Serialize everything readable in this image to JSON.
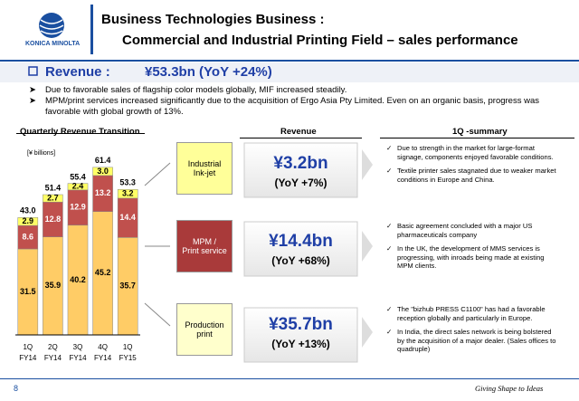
{
  "header": {
    "company": "KONICA MINOLTA",
    "title_line1": "Business Technologies Business :",
    "title_line2": "Commercial and Industrial Printing Field – sales performance"
  },
  "revenue": {
    "label": "Revenue :",
    "value": "¥53.3bn (YoY +24%)"
  },
  "bullets": [
    "Due to favorable sales of flagship color models globally, MIF increased steadily.",
    "MPM/print services increased significantly due to the acquisition of Ergo Asia Pty Limited. Even on an organic basis, progress was favorable with global growth of 13%."
  ],
  "chart_data": {
    "type": "bar",
    "stacked": true,
    "title": "Quarterly Revenue Transition",
    "unit_label": "[¥ billions]",
    "categories": [
      "1Q\nFY14",
      "2Q\nFY14",
      "3Q\nFY14",
      "4Q\nFY14",
      "1Q\nFY15"
    ],
    "ylim": [
      0,
      65
    ],
    "series": [
      {
        "color": "#FFCC66",
        "values": [
          31.5,
          35.9,
          40.2,
          45.2,
          35.7
        ],
        "value_labels": [
          "31.5",
          "35.9",
          "40.2",
          "45.2",
          "35.7"
        ]
      },
      {
        "color": "#C0504D",
        "values": [
          8.6,
          12.8,
          12.9,
          13.2,
          14.4
        ],
        "value_labels": [
          "8.6",
          "12.8",
          "12.9",
          "13.2",
          "14.4"
        ]
      },
      {
        "color": "#FFFF66",
        "values": [
          2.9,
          2.7,
          2.4,
          3.0,
          3.2
        ],
        "value_labels": [
          "2.9",
          "2.7",
          "2.4",
          "3.0",
          "3.2"
        ]
      }
    ],
    "totals": {
      "values": [
        43.0,
        51.4,
        55.4,
        61.4,
        53.3
      ],
      "value_labels": [
        "43.0",
        "51.4",
        "55.4",
        "61.4",
        "53.3"
      ]
    }
  },
  "segments": {
    "revenue_header": "Revenue",
    "summary_header": "1Q -summary",
    "items": [
      {
        "name": "Industrial\nInk-jet",
        "revenue": "¥3.2bn",
        "yoy": "(YoY +7%)",
        "summary": [
          "Due to strength in the market for large-format signage, components enjoyed favorable conditions.",
          "Textile printer sales stagnated due to weaker market conditions in Europe and China."
        ]
      },
      {
        "name": "MPM /\nPrint service",
        "revenue": "¥14.4bn",
        "yoy": "(YoY +68%)",
        "summary": [
          "Basic agreement concluded with a major US pharmaceuticals company",
          "In the UK, the development of MMS services is progressing, with inroads being made at existing MPM clients."
        ]
      },
      {
        "name": "Production\nprint",
        "revenue": "¥35.7bn",
        "yoy": "(YoY +13%)",
        "summary": [
          "The \"bizhub PRESS C1100\" has had a favorable reception globally and particularly in Europe.",
          "In India, the direct sales network is being bolstered by the acquisition of a major dealer. (Sales offices to quadruple)"
        ]
      }
    ]
  },
  "footer": {
    "page": "8",
    "tagline": "Giving Shape to Ideas"
  }
}
